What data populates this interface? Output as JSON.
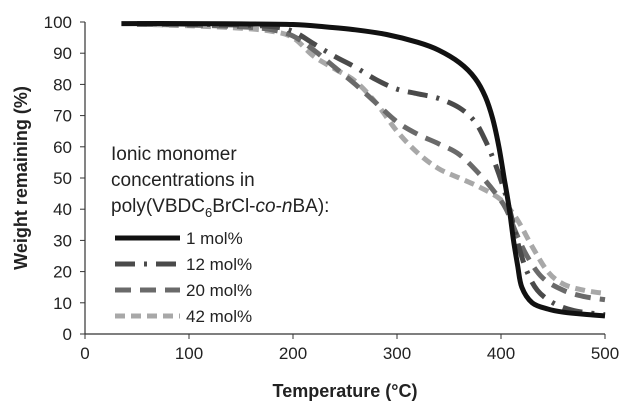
{
  "chart_data": {
    "type": "line",
    "title": "",
    "xlabel": "Temperature (°C)",
    "ylabel": "Weight remaining (%)",
    "xlim": [
      0,
      500
    ],
    "ylim": [
      0,
      100
    ],
    "xticks": [
      0,
      100,
      200,
      300,
      400,
      500
    ],
    "yticks": [
      0,
      10,
      20,
      30,
      40,
      50,
      60,
      70,
      80,
      90,
      100
    ],
    "grid": false,
    "legend": {
      "position": "left-middle",
      "title_lines": [
        "Ionic monomer",
        "concentrations in"
      ],
      "title_last_parts": [
        "poly(VBDC",
        "6",
        "BrCl-",
        "co",
        "-",
        "n",
        "BA):"
      ]
    },
    "series": [
      {
        "name": "1 mol%",
        "color": "#111111",
        "dash": "solid",
        "x": [
          35,
          100,
          150,
          200,
          230,
          260,
          290,
          320,
          340,
          360,
          375,
          385,
          392,
          398,
          403,
          408,
          412,
          416,
          420,
          430,
          445,
          460,
          480,
          500
        ],
        "y": [
          99.5,
          99.5,
          99.4,
          99.2,
          98.5,
          97.5,
          96,
          93.5,
          91,
          87,
          82,
          76,
          69,
          60,
          50,
          40,
          30,
          22,
          15,
          10,
          8,
          7,
          6.3,
          5.8
        ]
      },
      {
        "name": "12 mol%",
        "color": "#4a4a4a",
        "dash": "longdash-dot",
        "x": [
          50,
          100,
          150,
          180,
          200,
          220,
          240,
          260,
          280,
          300,
          320,
          340,
          360,
          375,
          385,
          395,
          405,
          412,
          418,
          425,
          435,
          450,
          470,
          500
        ],
        "y": [
          99.5,
          99.3,
          99,
          98.5,
          97,
          93,
          89,
          85.5,
          81.5,
          78.5,
          77,
          75.5,
          72.5,
          68,
          62,
          54,
          44,
          35,
          27,
          20,
          14,
          10,
          7.5,
          6.2
        ]
      },
      {
        "name": "20 mol%",
        "color": "#6a6a6a",
        "dash": "dash",
        "x": [
          50,
          100,
          150,
          180,
          200,
          220,
          240,
          260,
          280,
          300,
          320,
          340,
          360,
          380,
          395,
          405,
          415,
          425,
          440,
          460,
          480,
          500
        ],
        "y": [
          99.3,
          99,
          98.5,
          97.5,
          95.5,
          91,
          85.5,
          80,
          74,
          68,
          64,
          61,
          57.5,
          51,
          45,
          40,
          32,
          25,
          18,
          14,
          12,
          11
        ]
      },
      {
        "name": "42 mol%",
        "color": "#a8a8a8",
        "dash": "shortdash",
        "x": [
          50,
          100,
          150,
          180,
          200,
          220,
          240,
          260,
          280,
          300,
          320,
          340,
          360,
          380,
          400,
          415,
          430,
          445,
          460,
          480,
          500
        ],
        "y": [
          99.3,
          98.8,
          98,
          97,
          95,
          89,
          85,
          81,
          74,
          65,
          58,
          53,
          50,
          47,
          43,
          37,
          28,
          20,
          16,
          14,
          13
        ]
      }
    ]
  }
}
